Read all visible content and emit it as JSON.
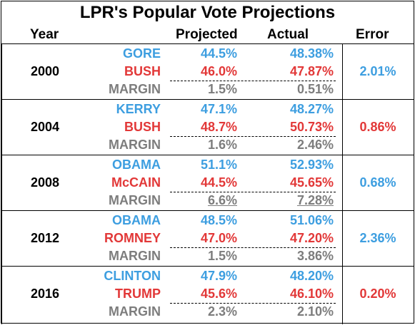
{
  "title": "LPR's Popular Vote Projections",
  "headers": {
    "year": "Year",
    "projected": "Projected",
    "actual": "Actual",
    "error": "Error"
  },
  "colors": {
    "dem": "#3d9ee0",
    "rep": "#e23838",
    "margin": "#7d7d7d"
  },
  "elections": [
    {
      "year": "2000",
      "error": "2.01%",
      "error_color": "blue",
      "rows": [
        {
          "name": "GORE",
          "projected": "44.5%",
          "actual": "48.38%",
          "color": "blue"
        },
        {
          "name": "BUSH",
          "projected": "46.0%",
          "actual": "47.87%",
          "color": "red"
        },
        {
          "name": "MARGIN",
          "projected": "1.5%",
          "actual": "0.51%",
          "color": "gray",
          "underline": false
        }
      ]
    },
    {
      "year": "2004",
      "error": "0.86%",
      "error_color": "red",
      "rows": [
        {
          "name": "KERRY",
          "projected": "47.1%",
          "actual": "48.27%",
          "color": "blue"
        },
        {
          "name": "BUSH",
          "projected": "48.7%",
          "actual": "50.73%",
          "color": "red"
        },
        {
          "name": "MARGIN",
          "projected": "1.6%",
          "actual": "2.46%",
          "color": "gray",
          "underline": false
        }
      ]
    },
    {
      "year": "2008",
      "error": "0.68%",
      "error_color": "blue",
      "rows": [
        {
          "name": "OBAMA",
          "projected": "51.1%",
          "actual": "52.93%",
          "color": "blue"
        },
        {
          "name": "McCAIN",
          "projected": "44.5%",
          "actual": "45.65%",
          "color": "red"
        },
        {
          "name": "MARGIN",
          "projected": "6.6%",
          "actual": "7.28%",
          "color": "gray",
          "underline": true
        }
      ]
    },
    {
      "year": "2012",
      "error": "2.36%",
      "error_color": "blue",
      "rows": [
        {
          "name": "OBAMA",
          "projected": "48.5%",
          "actual": "51.06%",
          "color": "blue"
        },
        {
          "name": "ROMNEY",
          "projected": "47.0%",
          "actual": "47.20%",
          "color": "red"
        },
        {
          "name": "MARGIN",
          "projected": "1.5%",
          "actual": "3.86%",
          "color": "gray",
          "underline": false
        }
      ]
    },
    {
      "year": "2016",
      "error": "0.20%",
      "error_color": "red",
      "rows": [
        {
          "name": "CLINTON",
          "projected": "47.9%",
          "actual": "48.20%",
          "color": "blue"
        },
        {
          "name": "TRUMP",
          "projected": "45.6%",
          "actual": "46.10%",
          "color": "red"
        },
        {
          "name": "MARGIN",
          "projected": "2.3%",
          "actual": "2.10%",
          "color": "gray",
          "underline": false
        }
      ]
    }
  ]
}
